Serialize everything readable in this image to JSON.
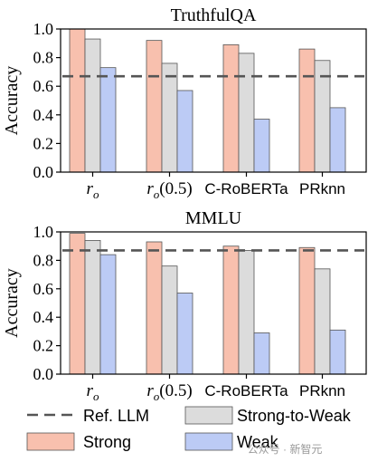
{
  "chart_data": [
    {
      "type": "bar",
      "title": "TruthfulQA",
      "ylabel": "Accuracy",
      "ylim": [
        0,
        1.0
      ],
      "yticks": [
        "0.0",
        "0.2",
        "0.4",
        "0.6",
        "0.8",
        "1.0"
      ],
      "categories": [
        "r_o",
        "r_o(0.5)",
        "C-RoBERTa",
        "PRknn"
      ],
      "series": [
        {
          "name": "Strong",
          "values": [
            1.0,
            0.92,
            0.89,
            0.86
          ]
        },
        {
          "name": "Strong-to-Weak",
          "values": [
            0.93,
            0.76,
            0.83,
            0.78
          ]
        },
        {
          "name": "Weak",
          "values": [
            0.73,
            0.57,
            0.37,
            0.45
          ]
        }
      ],
      "reference_line": {
        "name": "Ref. LLM",
        "value": 0.67
      }
    },
    {
      "type": "bar",
      "title": "MMLU",
      "ylabel": "Accuracy",
      "ylim": [
        0,
        1.0
      ],
      "yticks": [
        "0.0",
        "0.2",
        "0.4",
        "0.6",
        "0.8",
        "1.0"
      ],
      "categories": [
        "r_o",
        "r_o(0.5)",
        "C-RoBERTa",
        "PRknn"
      ],
      "series": [
        {
          "name": "Strong",
          "values": [
            0.99,
            0.93,
            0.9,
            0.89
          ]
        },
        {
          "name": "Strong-to-Weak",
          "values": [
            0.94,
            0.76,
            0.87,
            0.74
          ]
        },
        {
          "name": "Weak",
          "values": [
            0.84,
            0.57,
            0.29,
            0.31
          ]
        }
      ],
      "reference_line": {
        "name": "Ref. LLM",
        "value": 0.87
      }
    }
  ],
  "legend": {
    "items": [
      {
        "name": "Ref. LLM",
        "kind": "dashed-line"
      },
      {
        "name": "Strong-to-Weak",
        "kind": "box"
      },
      {
        "name": "Strong",
        "kind": "box"
      },
      {
        "name": "Weak",
        "kind": "box"
      }
    ]
  },
  "colors": {
    "Strong": "#f8c0ae",
    "Strong-to-Weak": "#dcdcdc",
    "Weak": "#bccbf5",
    "ref_line": "#555555",
    "edge": "#555555"
  },
  "watermark": "公众号 · 新智元"
}
